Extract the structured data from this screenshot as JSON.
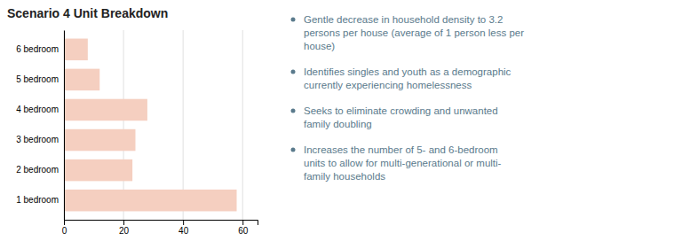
{
  "chart_data": {
    "type": "bar",
    "orientation": "horizontal",
    "title": "Scenario 4 Unit Breakdown",
    "categories": [
      "1 bedroom",
      "2 bedroom",
      "3 bedroom",
      "4 bedroom",
      "5 bedroom",
      "6 bedroom"
    ],
    "values": [
      58,
      23,
      24,
      28,
      12,
      8
    ],
    "color": "#f5cfc0",
    "xlim": [
      0,
      65
    ],
    "xticks": [
      0,
      20,
      40,
      60
    ],
    "grid": true,
    "annotations": [
      "Gentle decrease in household density to 3.2\npersons per house (average of 1 person less per\nhouse)",
      "Identifies singles and youth as a demographic\ncurrently experiencing homelessness",
      "Seeks to eliminate crowding and unwanted\nfamily doubling",
      "Increases the number of 5- and 6-bedroom\nunits to allow for multi-generational or multi-\nfamily households"
    ]
  }
}
